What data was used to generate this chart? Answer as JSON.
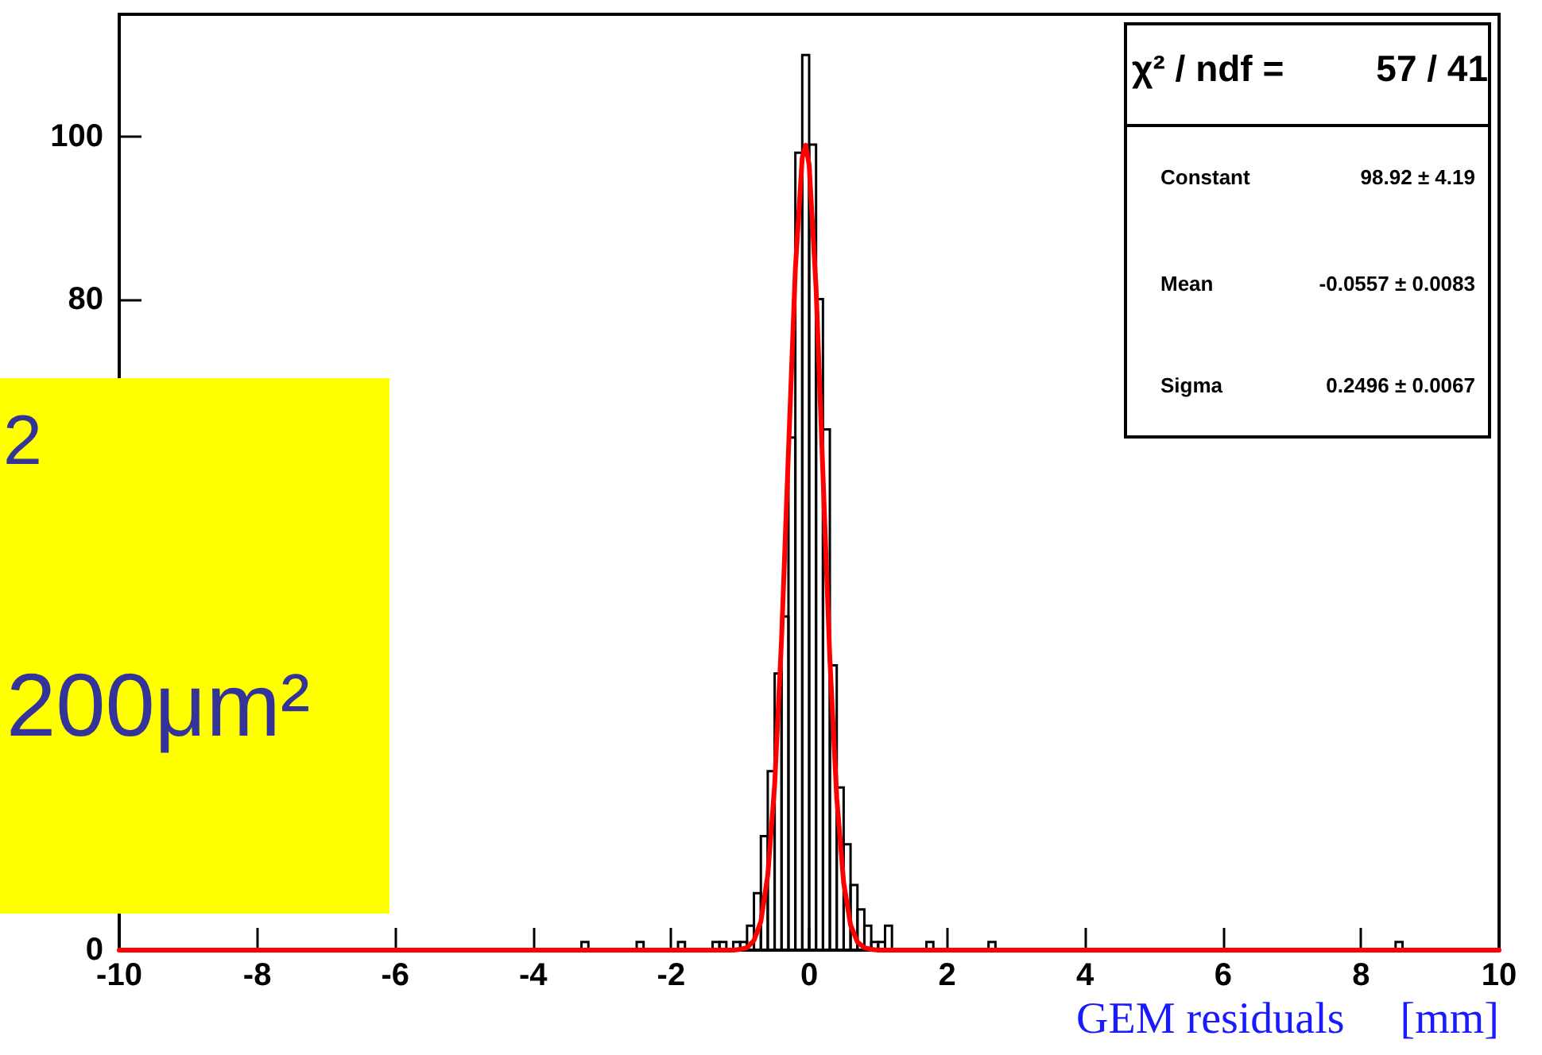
{
  "chart_data": {
    "type": "histogram",
    "xlabel": "GEM residuals     [mm]",
    "xlim": [
      -10,
      10
    ],
    "xticks": [
      -10,
      -8,
      -6,
      -4,
      -2,
      0,
      2,
      4,
      6,
      8,
      10
    ],
    "ylim": [
      0,
      115
    ],
    "yticks": [
      0,
      80,
      100
    ],
    "marker": "none",
    "line_style": "solid",
    "annotations": [
      "χ² / ndf =",
      "57 / 41",
      "Constant",
      "98.92 ± 4.19",
      "Mean",
      "-0.0557 ± 0.0083",
      "Sigma",
      "0.2496 ± 0.0067",
      "2",
      "200μm²"
    ],
    "series": [
      {
        "color": "#000000",
        "bins": [
          -10,
          -9.9,
          -9.8,
          -9.7,
          -9.6,
          -9.5,
          -9.4,
          -9.3,
          -9.2,
          -9.1,
          -9,
          -8.9,
          -8.8,
          -8.7,
          -8.6,
          -8.5,
          -8.4,
          -8.3,
          -8.2,
          -8.1,
          -8,
          -7.9,
          -7.8,
          -7.7,
          -7.6,
          -7.5,
          -7.4,
          -7.3,
          -7.2,
          -7.1,
          -7,
          -6.9,
          -6.8,
          -6.7,
          -6.6,
          -6.5,
          -6.4,
          -6.3,
          -6.2,
          -6.1,
          -6,
          -5.9,
          -5.8,
          -5.7,
          -5.6,
          -5.5,
          -5.4,
          -5.3,
          -5.2,
          -5.1,
          -5,
          -4.9,
          -4.8,
          -4.7,
          -4.6,
          -4.5,
          -4.4,
          -4.3,
          -4.2,
          -4.1,
          -4,
          -3.9,
          -3.8,
          -3.7,
          -3.6,
          -3.5,
          -3.4,
          -3.3,
          -3.2,
          -3.1,
          -3,
          -2.9,
          -2.8,
          -2.7,
          -2.6,
          -2.5,
          -2.4,
          -2.3,
          -2.2,
          -2.1,
          -2,
          -1.9,
          -1.8,
          -1.7,
          -1.6,
          -1.5,
          -1.4,
          -1.3,
          -1.2,
          -1.1,
          -1,
          -0.9,
          -0.8,
          -0.7,
          -0.6,
          -0.5,
          -0.4,
          -0.3,
          -0.2,
          -0.1,
          0,
          0.1,
          0.2,
          0.3,
          0.4,
          0.5,
          0.6,
          0.7,
          0.8,
          0.9,
          1,
          1.1,
          1.2,
          1.3,
          1.4,
          1.5,
          1.6,
          1.7,
          1.8,
          1.9,
          2,
          2.1,
          2.2,
          2.3,
          2.4,
          2.5,
          2.6,
          2.7,
          2.8,
          2.9,
          3,
          3.1,
          3.2,
          3.3,
          3.4,
          3.5,
          3.6,
          3.7,
          3.8,
          3.9,
          4,
          4.1,
          4.2,
          4.3,
          4.4,
          4.5,
          4.6,
          4.7,
          4.8,
          4.9,
          5,
          5.1,
          5.2,
          5.3,
          5.4,
          5.5,
          5.6,
          5.7,
          5.8,
          5.9,
          6,
          6.1,
          6.2,
          6.3,
          6.4,
          6.5,
          6.6,
          6.7,
          6.8,
          6.9,
          7,
          7.1,
          7.2,
          7.3,
          7.4,
          7.5,
          7.6,
          7.7,
          7.8,
          7.9,
          8,
          8.1,
          8.2,
          8.3,
          8.4,
          8.5,
          8.6,
          8.7,
          8.8,
          8.9,
          9,
          9.1,
          9.2,
          9.3,
          9.4,
          9.5,
          9.6,
          9.7,
          9.8,
          9.9,
          10
        ],
        "values": [
          0,
          0,
          0,
          0,
          0,
          0,
          0,
          0,
          0,
          0,
          0,
          0,
          0,
          0,
          0,
          0,
          0,
          0,
          0,
          0,
          0,
          0,
          0,
          0,
          0,
          0,
          0,
          0,
          0,
          0,
          0,
          0,
          0,
          0,
          0,
          0,
          0,
          0,
          0,
          0,
          0,
          0,
          0,
          0,
          0,
          0,
          0,
          0,
          0,
          0,
          0,
          0,
          0,
          0,
          0,
          0,
          0,
          0,
          0,
          0,
          0,
          0,
          0,
          0,
          0,
          0,
          0,
          1,
          0,
          0,
          0,
          0,
          0,
          0,
          0,
          1,
          0,
          0,
          0,
          0,
          0,
          1,
          0,
          0,
          0,
          0,
          1,
          1,
          0,
          1,
          1,
          3,
          7,
          14,
          22,
          34,
          41,
          63,
          98,
          110,
          99,
          80,
          64,
          35,
          20,
          13,
          8,
          5,
          3,
          1,
          1,
          3,
          0,
          0,
          0,
          0,
          0,
          1,
          0,
          0,
          0,
          0,
          0,
          0,
          0,
          0,
          1,
          0,
          0,
          0,
          0,
          0,
          0,
          0,
          0,
          0,
          0,
          0,
          0,
          0,
          0,
          0,
          0,
          0,
          0,
          0,
          0,
          0,
          0,
          0,
          0,
          0,
          0,
          0,
          0,
          0,
          0,
          0,
          0,
          0,
          0,
          0,
          0,
          0,
          0,
          0,
          0,
          0,
          0,
          0,
          0,
          0,
          0,
          0,
          0,
          0,
          0,
          0,
          0,
          0,
          0,
          0,
          0,
          0,
          0,
          1,
          0,
          0,
          0,
          0,
          0,
          0,
          0,
          0,
          0,
          0,
          0,
          0,
          0,
          0
        ]
      },
      {
        "type": "line",
        "color": "#ff0000",
        "x": [
          -10,
          -1.1,
          -1,
          -0.9,
          -0.8,
          -0.7,
          -0.6,
          -0.5,
          -0.4,
          -0.3,
          -0.2,
          -0.1,
          -0.05,
          0,
          0.1,
          0.2,
          0.3,
          0.4,
          0.5,
          0.6,
          0.7,
          0.8,
          0.9,
          1,
          10
        ],
        "values": [
          0,
          0,
          0.1,
          0.3,
          1.2,
          3.5,
          9.2,
          20.3,
          38.2,
          61.3,
          83.7,
          97.4,
          98.9,
          96.5,
          81.4,
          58.5,
          35.8,
          18.7,
          8.3,
          3.1,
          1,
          0.3,
          0.1,
          0,
          0
        ]
      }
    ]
  }
}
